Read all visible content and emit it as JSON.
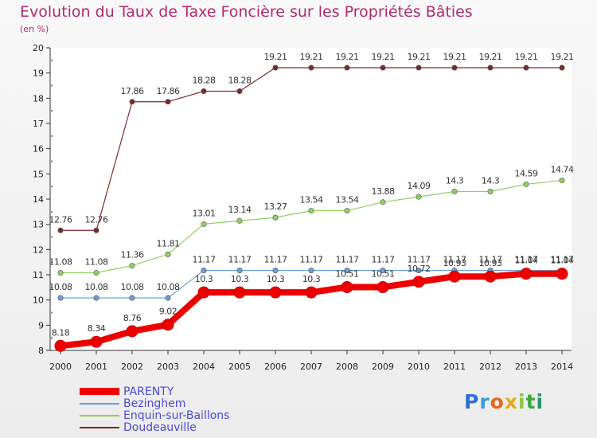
{
  "header": {
    "title": "Evolution du Taux de Taxe Foncière sur les Propriétés Bâties",
    "subtitle": "(en %)"
  },
  "logo": {
    "text": "Proxiti",
    "letters": [
      {
        "ch": "P",
        "color": "#2b6fd4"
      },
      {
        "ch": "r",
        "color": "#3a9ad9"
      },
      {
        "ch": "o",
        "color": "#e8651a"
      },
      {
        "ch": "x",
        "color": "#e8a81a"
      },
      {
        "ch": "i",
        "color": "#8cc63f"
      },
      {
        "ch": "t",
        "color": "#3aaa3a"
      },
      {
        "ch": "i",
        "color": "#2b8f6f"
      }
    ]
  },
  "chart_data": {
    "type": "line",
    "title": "Evolution du Taux de Taxe Foncière sur les Propriétés Bâties",
    "ylabel": "(en %)",
    "xlabel": "",
    "ylim": [
      8,
      20
    ],
    "yticks": [
      "8",
      "9",
      "10",
      "11",
      "12",
      "13",
      "14",
      "15",
      "16",
      "17",
      "18",
      "19",
      "20"
    ],
    "categories": [
      "2000",
      "2001",
      "2002",
      "2003",
      "2004",
      "2005",
      "2006",
      "2007",
      "2008",
      "2009",
      "2010",
      "2011",
      "2012",
      "2013",
      "2014"
    ],
    "series": [
      {
        "name": "Doudeauville",
        "color": "#7a2a2a",
        "values": [
          12.76,
          12.76,
          17.86,
          17.86,
          18.28,
          18.28,
          19.21,
          19.21,
          19.21,
          19.21,
          19.21,
          19.21,
          19.21,
          19.21,
          19.21
        ],
        "labels": [
          "12.76",
          "12.76",
          "17.86",
          "17.86",
          "18.28",
          "18.28",
          "19.21",
          "19.21",
          "19.21",
          "19.21",
          "19.21",
          "19.21",
          "19.21",
          "19.21",
          "19.21"
        ]
      },
      {
        "name": "Enquin-sur-Baillons",
        "color": "#90d060",
        "values": [
          11.08,
          11.08,
          11.36,
          11.81,
          13.01,
          13.14,
          13.27,
          13.54,
          13.54,
          13.88,
          14.09,
          14.3,
          14.3,
          14.59,
          14.74
        ],
        "labels": [
          "11.08",
          "11.08",
          "11.36",
          "11.81",
          "13.01",
          "13.14",
          "13.27",
          "13.54",
          "13.54",
          "13.88",
          "14.09",
          "14.3",
          "14.3",
          "14.59",
          "14.74"
        ]
      },
      {
        "name": "Bezinghem",
        "color": "#6aa0d8",
        "values": [
          10.08,
          10.08,
          10.08,
          10.08,
          11.17,
          11.17,
          11.17,
          11.17,
          11.17,
          11.17,
          11.17,
          11.17,
          11.17,
          11.17,
          11.17
        ],
        "labels": [
          "10.08",
          "10.08",
          "10.08",
          "10.08",
          "11.17",
          "11.17",
          "11.17",
          "11.17",
          "11.17",
          "11.17",
          "11.17",
          "11.17",
          "11.17",
          "11.17",
          "11.17"
        ]
      },
      {
        "name": "PARENTY",
        "color": "#ee0000",
        "values": [
          8.18,
          8.34,
          8.76,
          9.02,
          10.3,
          10.3,
          10.3,
          10.3,
          10.51,
          10.51,
          10.72,
          10.93,
          10.93,
          11.04,
          11.04
        ],
        "labels": [
          "8.18",
          "8.34",
          "8.76",
          "9.02",
          "10.3",
          "10.3",
          "10.3",
          "10.3",
          "10.51",
          "10.51",
          "10.72",
          "10.93",
          "10.93",
          "11.04",
          "11.04"
        ]
      }
    ],
    "legend": {
      "position": "bottom-left",
      "items": [
        {
          "name": "PARENTY",
          "color": "#ee0000",
          "weight": "thick"
        },
        {
          "name": "Bezinghem",
          "color": "#6aa0d8",
          "weight": "thin"
        },
        {
          "name": "Enquin-sur-Baillons",
          "color": "#90d060",
          "weight": "thin"
        },
        {
          "name": "Doudeauville",
          "color": "#7a2a2a",
          "weight": "thin"
        }
      ]
    }
  }
}
